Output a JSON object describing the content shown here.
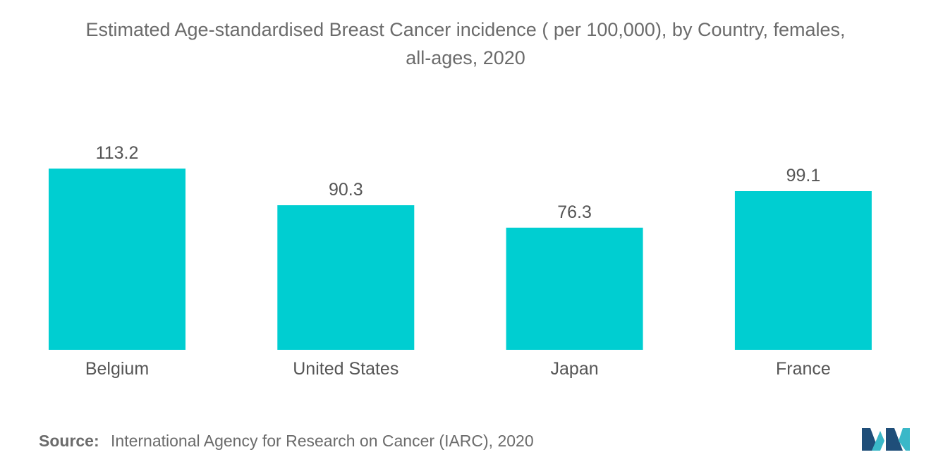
{
  "title_line1": "Estimated Age-standardised Breast Cancer incidence ( per 100,000), by Country, females,",
  "title_line2": "all-ages, 2020",
  "source": {
    "label": "Source:",
    "text": "International Agency for Research on Cancer (IARC), 2020"
  },
  "colors": {
    "bar": "#00CED1",
    "text": "#555555",
    "logo_dark": "#1F4E79",
    "logo_light": "#3AB8C8"
  },
  "logo_icon": "mordor-intelligence-logo",
  "chart_data": {
    "type": "bar",
    "categories": [
      "Belgium",
      "United States",
      "Japan",
      "France"
    ],
    "values": [
      113.2,
      90.3,
      76.3,
      99.1
    ],
    "value_labels": [
      "113.2",
      "90.3",
      "76.3",
      "99.1"
    ],
    "xlabel": "",
    "ylabel": "",
    "ylim": [
      0,
      113.2
    ],
    "grid": false,
    "legend": "none"
  }
}
